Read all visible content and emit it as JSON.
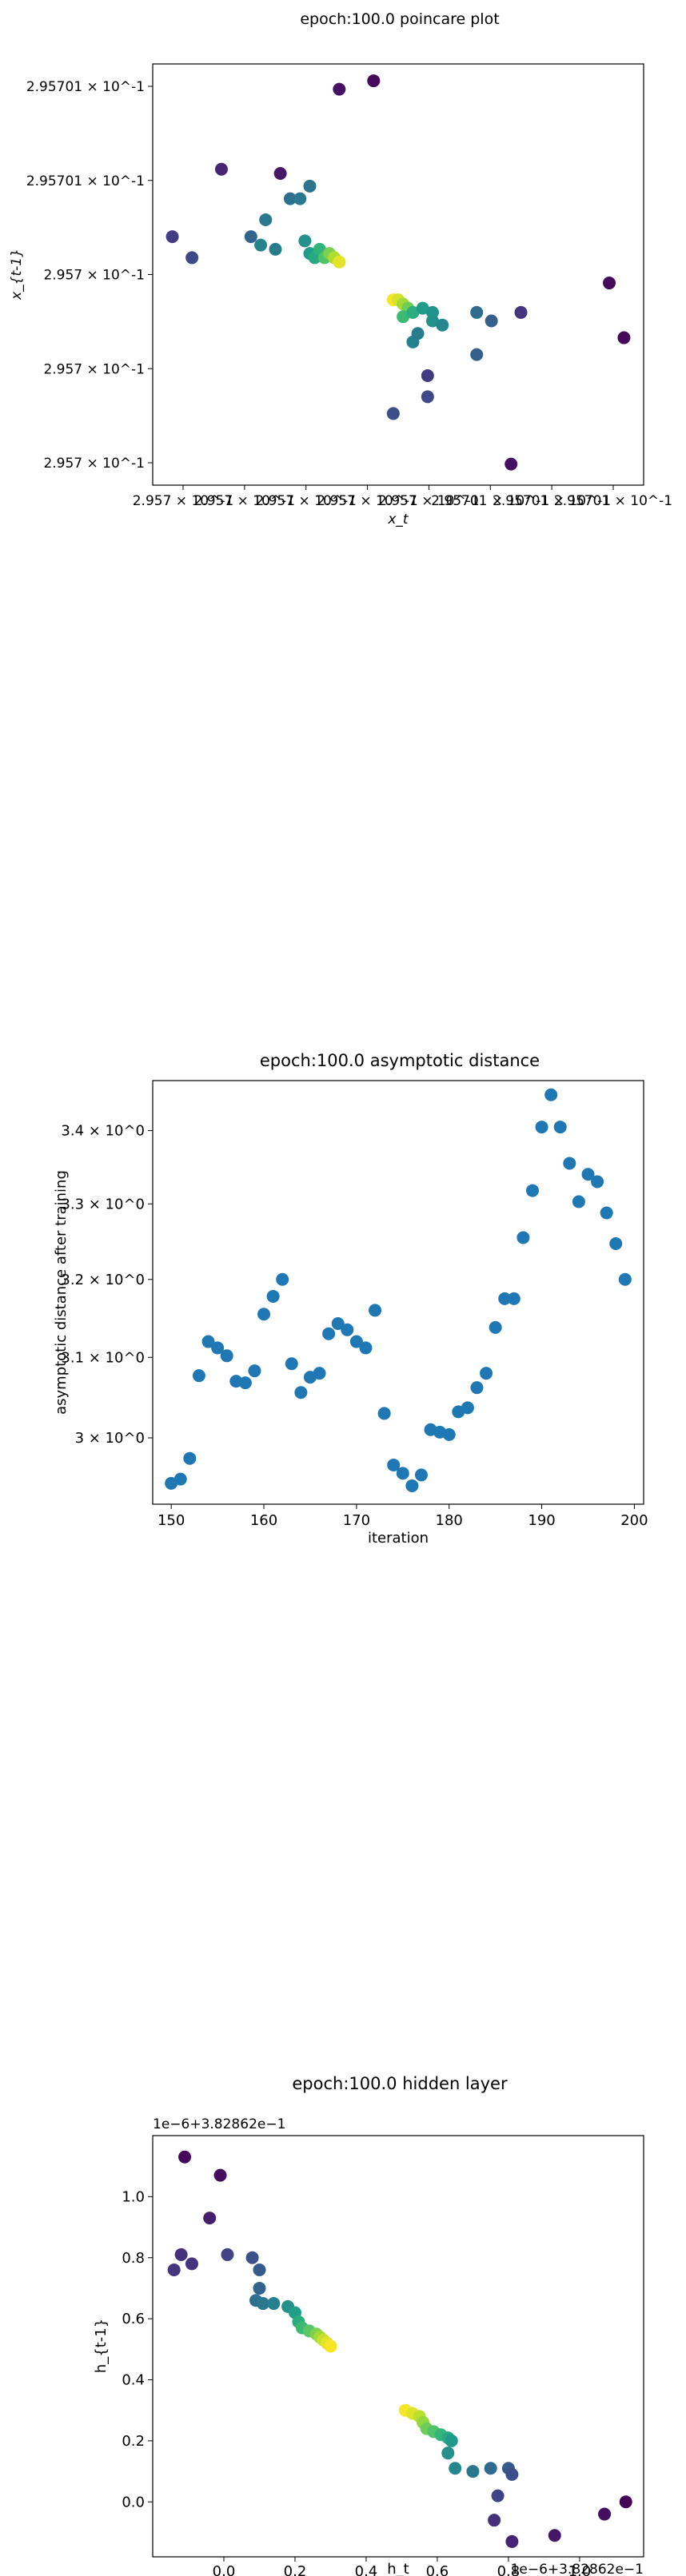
{
  "chart_data": [
    {
      "type": "scatter",
      "title": "epoch:100.0 poincare plot",
      "xlabel": "x_t",
      "ylabel": "x_{t-1}",
      "xlim": [
        0,
        1
      ],
      "ylim": [
        0,
        1
      ],
      "grid": false,
      "colormap": "viridis",
      "x_tick_labels": [
        "2.957 × 10^-1",
        "2.957 × 10^-1",
        "2.957 × 10^-1",
        "2.957 × 10^-1",
        "2.957 × 10^-1",
        "2.95701 × 10^-1",
        "2.95701 × 10^-1",
        "2.95701 × 10^-1"
      ],
      "y_tick_labels": [
        "2.95701 × 10^-1",
        "2.95701 × 10^-1",
        "2.957 × 10^-1",
        "2.957 × 10^-1",
        "2.957 × 10^-1"
      ],
      "points": [
        {
          "x": 0.38,
          "y": 0.94,
          "c": 0.05
        },
        {
          "x": 0.45,
          "y": 0.96,
          "c": 0.02
        },
        {
          "x": 0.14,
          "y": 0.75,
          "c": 0.1
        },
        {
          "x": 0.26,
          "y": 0.74,
          "c": 0.06
        },
        {
          "x": 0.04,
          "y": 0.59,
          "c": 0.18
        },
        {
          "x": 0.08,
          "y": 0.54,
          "c": 0.22
        },
        {
          "x": 0.2,
          "y": 0.59,
          "c": 0.32
        },
        {
          "x": 0.23,
          "y": 0.63,
          "c": 0.4
        },
        {
          "x": 0.25,
          "y": 0.56,
          "c": 0.42
        },
        {
          "x": 0.22,
          "y": 0.57,
          "c": 0.45
        },
        {
          "x": 0.28,
          "y": 0.68,
          "c": 0.36
        },
        {
          "x": 0.3,
          "y": 0.68,
          "c": 0.4
        },
        {
          "x": 0.32,
          "y": 0.71,
          "c": 0.38
        },
        {
          "x": 0.31,
          "y": 0.58,
          "c": 0.5
        },
        {
          "x": 0.32,
          "y": 0.55,
          "c": 0.55
        },
        {
          "x": 0.33,
          "y": 0.54,
          "c": 0.6
        },
        {
          "x": 0.34,
          "y": 0.56,
          "c": 0.65
        },
        {
          "x": 0.35,
          "y": 0.54,
          "c": 0.72
        },
        {
          "x": 0.36,
          "y": 0.55,
          "c": 0.8
        },
        {
          "x": 0.37,
          "y": 0.54,
          "c": 0.88
        },
        {
          "x": 0.38,
          "y": 0.53,
          "c": 0.96
        },
        {
          "x": 0.49,
          "y": 0.44,
          "c": 0.99
        },
        {
          "x": 0.5,
          "y": 0.44,
          "c": 0.94
        },
        {
          "x": 0.51,
          "y": 0.43,
          "c": 0.86
        },
        {
          "x": 0.52,
          "y": 0.42,
          "c": 0.78
        },
        {
          "x": 0.51,
          "y": 0.4,
          "c": 0.68
        },
        {
          "x": 0.53,
          "y": 0.41,
          "c": 0.62
        },
        {
          "x": 0.55,
          "y": 0.42,
          "c": 0.55
        },
        {
          "x": 0.57,
          "y": 0.41,
          "c": 0.52
        },
        {
          "x": 0.57,
          "y": 0.39,
          "c": 0.5
        },
        {
          "x": 0.59,
          "y": 0.38,
          "c": 0.46
        },
        {
          "x": 0.53,
          "y": 0.34,
          "c": 0.44
        },
        {
          "x": 0.54,
          "y": 0.36,
          "c": 0.42
        },
        {
          "x": 0.66,
          "y": 0.41,
          "c": 0.35
        },
        {
          "x": 0.69,
          "y": 0.39,
          "c": 0.3
        },
        {
          "x": 0.66,
          "y": 0.31,
          "c": 0.3
        },
        {
          "x": 0.75,
          "y": 0.41,
          "c": 0.15
        },
        {
          "x": 0.93,
          "y": 0.48,
          "c": 0.03
        },
        {
          "x": 0.96,
          "y": 0.35,
          "c": 0.02
        },
        {
          "x": 0.73,
          "y": 0.05,
          "c": 0.04
        },
        {
          "x": 0.56,
          "y": 0.26,
          "c": 0.18
        },
        {
          "x": 0.56,
          "y": 0.21,
          "c": 0.22
        },
        {
          "x": 0.49,
          "y": 0.17,
          "c": 0.24
        }
      ]
    },
    {
      "type": "scatter",
      "title": "epoch:100.0 asymptotic distance",
      "xlabel": "iteration",
      "ylabel": "asymptotic distance after training",
      "xlim": [
        148,
        201
      ],
      "ylim": [
        2.92,
        3.47
      ],
      "yscale": "log",
      "x_ticks": [
        "150",
        "160",
        "170",
        "180",
        "190",
        "200"
      ],
      "y_tick_labels": [
        "3 × 10^0",
        "3.1 × 10^0",
        "3.2 × 10^0",
        "3.3 × 10^0",
        "3.4 × 10^0"
      ],
      "color": "#1f77b4",
      "x": [
        150,
        151,
        152,
        153,
        154,
        155,
        156,
        157,
        158,
        159,
        160,
        161,
        162,
        163,
        164,
        165,
        166,
        167,
        168,
        169,
        170,
        171,
        172,
        173,
        174,
        175,
        176,
        177,
        178,
        179,
        180,
        181,
        182,
        183,
        184,
        185,
        186,
        187,
        188,
        189,
        190,
        191,
        192,
        193,
        194,
        195,
        196,
        197,
        198,
        199
      ],
      "y": [
        2.945,
        2.95,
        2.975,
        3.077,
        3.12,
        3.112,
        3.102,
        3.07,
        3.068,
        3.083,
        3.155,
        3.178,
        3.2,
        3.092,
        3.056,
        3.075,
        3.08,
        3.13,
        3.143,
        3.135,
        3.12,
        3.112,
        3.16,
        3.03,
        2.967,
        2.957,
        2.942,
        2.955,
        3.01,
        3.007,
        3.004,
        3.032,
        3.037,
        3.062,
        3.08,
        3.138,
        3.175,
        3.175,
        3.255,
        3.318,
        3.405,
        3.45,
        3.405,
        3.355,
        3.303,
        3.34,
        3.33,
        3.288,
        3.247,
        3.2
      ]
    },
    {
      "type": "scatter",
      "title": "epoch:100.0 hidden layer",
      "xlabel": "h_t",
      "ylabel": "h_{t-1}",
      "x_offset_label": "1e−6+3.82862e−1",
      "y_offset_label": "1e−6+3.82862e−1",
      "xlim": [
        -0.2,
        1.18
      ],
      "ylim": [
        -0.18,
        1.2
      ],
      "x_ticks": [
        "0.0",
        "0.2",
        "0.4",
        "0.6",
        "0.8",
        "1.0"
      ],
      "y_ticks": [
        "0.0",
        "0.2",
        "0.4",
        "0.6",
        "0.8",
        "1.0"
      ],
      "colormap": "viridis",
      "points": [
        {
          "x": -0.11,
          "y": 1.13,
          "c": 0.02
        },
        {
          "x": -0.01,
          "y": 1.07,
          "c": 0.03
        },
        {
          "x": -0.04,
          "y": 0.93,
          "c": 0.08
        },
        {
          "x": -0.12,
          "y": 0.81,
          "c": 0.14
        },
        {
          "x": -0.09,
          "y": 0.78,
          "c": 0.15
        },
        {
          "x": -0.14,
          "y": 0.76,
          "c": 0.16
        },
        {
          "x": 0.01,
          "y": 0.81,
          "c": 0.2
        },
        {
          "x": 0.08,
          "y": 0.8,
          "c": 0.25
        },
        {
          "x": 0.1,
          "y": 0.76,
          "c": 0.28
        },
        {
          "x": 0.1,
          "y": 0.7,
          "c": 0.32
        },
        {
          "x": 0.09,
          "y": 0.66,
          "c": 0.36
        },
        {
          "x": 0.11,
          "y": 0.65,
          "c": 0.4
        },
        {
          "x": 0.14,
          "y": 0.65,
          "c": 0.44
        },
        {
          "x": 0.18,
          "y": 0.64,
          "c": 0.5
        },
        {
          "x": 0.2,
          "y": 0.62,
          "c": 0.56
        },
        {
          "x": 0.21,
          "y": 0.59,
          "c": 0.62
        },
        {
          "x": 0.22,
          "y": 0.57,
          "c": 0.68
        },
        {
          "x": 0.24,
          "y": 0.56,
          "c": 0.74
        },
        {
          "x": 0.26,
          "y": 0.55,
          "c": 0.8
        },
        {
          "x": 0.27,
          "y": 0.54,
          "c": 0.86
        },
        {
          "x": 0.28,
          "y": 0.53,
          "c": 0.92
        },
        {
          "x": 0.29,
          "y": 0.52,
          "c": 0.96
        },
        {
          "x": 0.3,
          "y": 0.51,
          "c": 0.99
        },
        {
          "x": 0.51,
          "y": 0.3,
          "c": 0.99
        },
        {
          "x": 0.53,
          "y": 0.29,
          "c": 0.95
        },
        {
          "x": 0.55,
          "y": 0.28,
          "c": 0.9
        },
        {
          "x": 0.56,
          "y": 0.26,
          "c": 0.84
        },
        {
          "x": 0.57,
          "y": 0.24,
          "c": 0.78
        },
        {
          "x": 0.59,
          "y": 0.23,
          "c": 0.72
        },
        {
          "x": 0.61,
          "y": 0.22,
          "c": 0.66
        },
        {
          "x": 0.63,
          "y": 0.21,
          "c": 0.6
        },
        {
          "x": 0.64,
          "y": 0.2,
          "c": 0.54
        },
        {
          "x": 0.63,
          "y": 0.16,
          "c": 0.5
        },
        {
          "x": 0.65,
          "y": 0.11,
          "c": 0.46
        },
        {
          "x": 0.7,
          "y": 0.1,
          "c": 0.4
        },
        {
          "x": 0.75,
          "y": 0.11,
          "c": 0.34
        },
        {
          "x": 0.8,
          "y": 0.11,
          "c": 0.28
        },
        {
          "x": 0.81,
          "y": 0.09,
          "c": 0.24
        },
        {
          "x": 0.77,
          "y": 0.02,
          "c": 0.2
        },
        {
          "x": 0.76,
          "y": -0.06,
          "c": 0.14
        },
        {
          "x": 0.81,
          "y": -0.13,
          "c": 0.1
        },
        {
          "x": 0.93,
          "y": -0.11,
          "c": 0.06
        },
        {
          "x": 1.07,
          "y": -0.04,
          "c": 0.04
        },
        {
          "x": 1.13,
          "y": 0.0,
          "c": 0.01
        }
      ]
    }
  ]
}
